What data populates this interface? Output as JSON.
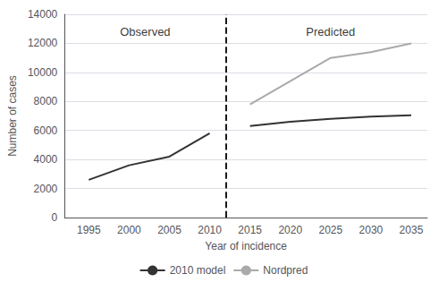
{
  "chart_data": {
    "type": "line",
    "xlabel": "Year of incidence",
    "ylabel": "Number of cases",
    "series": [
      {
        "color": "#333333",
        "x": [
          1995,
          2000,
          2005,
          2010
        ],
        "values": [
          2600,
          3600,
          4200,
          5800
        ]
      },
      {
        "name": "2010 model",
        "color": "#333333",
        "x": [
          2015,
          2020,
          2025,
          2030,
          2035
        ],
        "values": [
          6300,
          6600,
          6800,
          6950,
          7050
        ]
      },
      {
        "name": "Nordpred",
        "color": "#aaaaaa",
        "x": [
          2015,
          2020,
          2025,
          2030,
          2035
        ],
        "values": [
          7800,
          9400,
          11000,
          11400,
          12000
        ]
      }
    ],
    "xlim": [
      1992,
      2037
    ],
    "xticks": [
      1995,
      2000,
      2005,
      2010,
      2015,
      2020,
      2025,
      2030,
      2035
    ],
    "ylim": [
      0,
      14000
    ],
    "yticks": [
      0,
      2000,
      4000,
      6000,
      8000,
      10000,
      12000,
      14000
    ],
    "reference_lines": [
      {
        "x": 2012,
        "color": "#000000",
        "line_style": "dashed"
      }
    ],
    "annotations": [
      {
        "text": "Observed",
        "x": 2002,
        "y": 13200
      },
      {
        "text": "Predicted",
        "x": 2025,
        "y": 13200
      }
    ],
    "grid": true,
    "legend": "bottom"
  }
}
